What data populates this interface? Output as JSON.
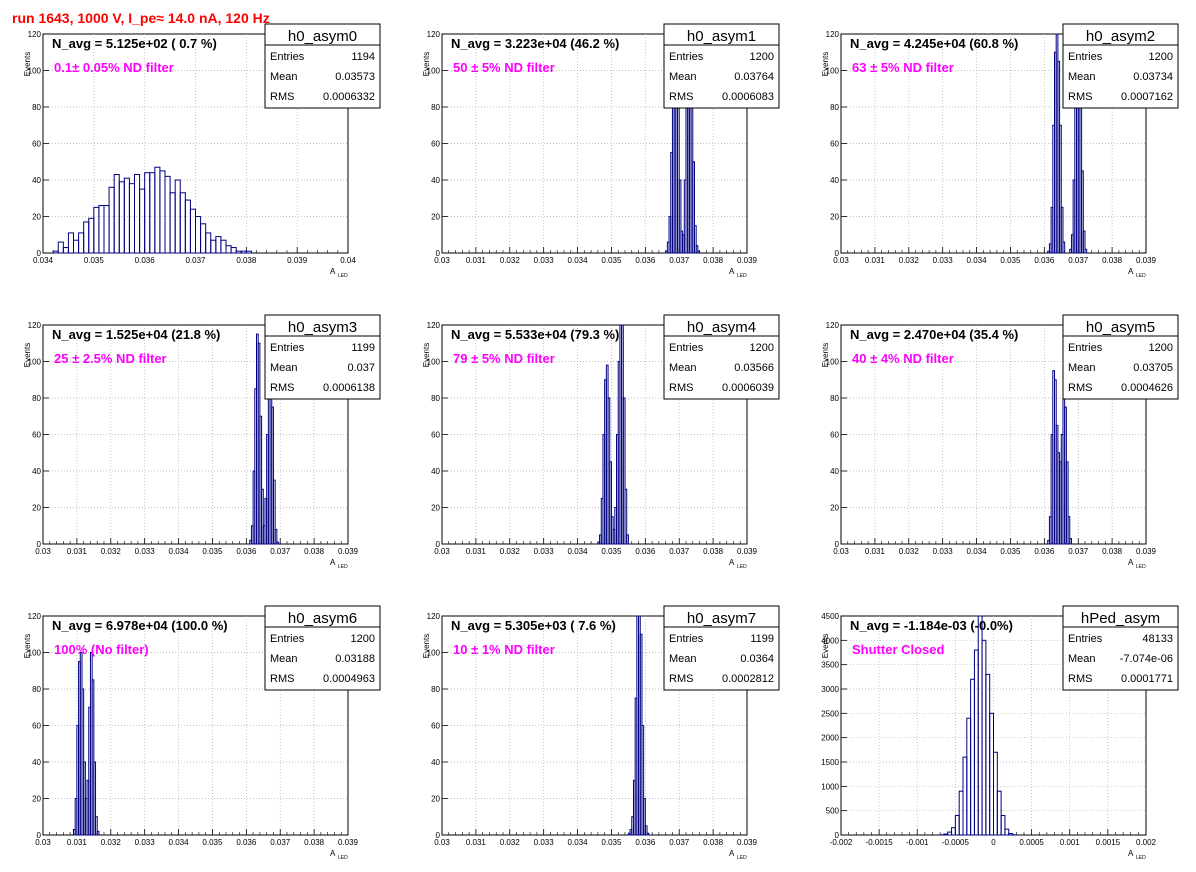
{
  "title": "run 1643,  1000 V, I_pe≈ 14.0 nA, 120 Hz",
  "colors": {
    "title": "#ff0000",
    "hist": "#000080",
    "filter_label": "#ff00ff",
    "grid": "#b0b0b0"
  },
  "chart_data": [
    {
      "type": "bar",
      "name": "h0_asym0",
      "navg": "N_avg = 5.125e+02 ( 0.7 %)",
      "label": "0.1± 0.05% ND filter",
      "stats": {
        "entries": "1194",
        "mean": "0.03573",
        "rms": "0.0006332"
      },
      "stat_labels": [
        "Entries",
        "Mean",
        "RMS"
      ],
      "xlabel": "A",
      "xlabel_sub": "LED",
      "ylabel": "Events",
      "xlim": [
        0.034,
        0.04
      ],
      "ylim": [
        0,
        120
      ],
      "xticks": [
        "0.034",
        "0.035",
        "0.036",
        "0.037",
        "0.038",
        "0.039",
        "0.04"
      ],
      "yticks": [
        "0",
        "20",
        "40",
        "60",
        "80",
        "100",
        "120"
      ],
      "bin_start": 0.034,
      "bin_width": 0.0001,
      "values": [
        0,
        0,
        1,
        6,
        3,
        11,
        7,
        11,
        17,
        19,
        25,
        26,
        26,
        36,
        43,
        39,
        41,
        38,
        43,
        35,
        44,
        44,
        47,
        45,
        42,
        33,
        40,
        33,
        29,
        24,
        20,
        16,
        11,
        7,
        9,
        7,
        4,
        3,
        1,
        1,
        1
      ]
    },
    {
      "type": "bar",
      "name": "h0_asym1",
      "navg": "N_avg = 3.223e+04 (46.2 %)",
      "label": "50 ± 5% ND filter",
      "stats": {
        "entries": "1200",
        "mean": "0.03764",
        "rms": "0.0006083"
      },
      "stat_labels": [
        "Entries",
        "Mean",
        "RMS"
      ],
      "xlabel": "A",
      "xlabel_sub": "LED",
      "ylabel": "Events",
      "xlim": [
        0.03,
        0.039
      ],
      "ylim": [
        0,
        120
      ],
      "xticks": [
        "0.03",
        "0.031",
        "0.032",
        "0.033",
        "0.034",
        "0.035",
        "0.036",
        "0.037",
        "0.038",
        "0.039"
      ],
      "yticks": [
        "0",
        "20",
        "40",
        "60",
        "80",
        "100",
        "120"
      ],
      "bin_start": 0.0366,
      "bin_width": 5e-05,
      "values": [
        1,
        6,
        20,
        55,
        100,
        125,
        125,
        85,
        40,
        12,
        10,
        40,
        90,
        125,
        125,
        95,
        50,
        15,
        4,
        1
      ]
    },
    {
      "type": "bar",
      "name": "h0_asym2",
      "navg": "N_avg = 4.245e+04 (60.8 %)",
      "label": "63 ± 5% ND filter",
      "stats": {
        "entries": "1200",
        "mean": "0.03734",
        "rms": "0.0007162"
      },
      "stat_labels": [
        "Entries",
        "Mean",
        "RMS"
      ],
      "xlabel": "A",
      "xlabel_sub": "LED",
      "ylabel": "Events",
      "xlim": [
        0.03,
        0.039
      ],
      "ylim": [
        0,
        120
      ],
      "xticks": [
        "0.03",
        "0.031",
        "0.032",
        "0.033",
        "0.034",
        "0.035",
        "0.036",
        "0.037",
        "0.038",
        "0.039"
      ],
      "yticks": [
        "0",
        "20",
        "40",
        "60",
        "80",
        "100",
        "120"
      ],
      "bin_start": 0.0361,
      "bin_width": 5e-05,
      "values": [
        1,
        5,
        25,
        70,
        110,
        125,
        105,
        70,
        25,
        6,
        0,
        0,
        0,
        2,
        10,
        40,
        85,
        125,
        125,
        90,
        45,
        12,
        2
      ]
    },
    {
      "type": "bar",
      "name": "h0_asym3",
      "navg": "N_avg = 1.525e+04 (21.8 %)",
      "label": "25 ± 2.5% ND filter",
      "stats": {
        "entries": "1199",
        "mean": "0.037",
        "rms": "0.0006138"
      },
      "stat_labels": [
        "Entries",
        "Mean",
        "RMS"
      ],
      "xlabel": "A",
      "xlabel_sub": "LED",
      "ylabel": "Events",
      "xlim": [
        0.03,
        0.039
      ],
      "ylim": [
        0,
        120
      ],
      "xticks": [
        "0.03",
        "0.031",
        "0.032",
        "0.033",
        "0.034",
        "0.035",
        "0.036",
        "0.037",
        "0.038",
        "0.039"
      ],
      "yticks": [
        "0",
        "20",
        "40",
        "60",
        "80",
        "100",
        "120"
      ],
      "bin_start": 0.0361,
      "bin_width": 5e-05,
      "values": [
        2,
        10,
        40,
        85,
        115,
        110,
        70,
        30,
        10,
        25,
        60,
        90,
        100,
        75,
        35,
        8,
        1
      ]
    },
    {
      "type": "bar",
      "name": "h0_asym4",
      "navg": "N_avg = 5.533e+04 (79.3 %)",
      "label": "79 ± 5% ND filter",
      "stats": {
        "entries": "1200",
        "mean": "0.03566",
        "rms": "0.0006039"
      },
      "stat_labels": [
        "Entries",
        "Mean",
        "RMS"
      ],
      "xlabel": "A",
      "xlabel_sub": "LED",
      "ylabel": "Events",
      "xlim": [
        0.03,
        0.039
      ],
      "ylim": [
        0,
        120
      ],
      "xticks": [
        "0.03",
        "0.031",
        "0.032",
        "0.033",
        "0.034",
        "0.035",
        "0.036",
        "0.037",
        "0.038",
        "0.039"
      ],
      "yticks": [
        "0",
        "20",
        "40",
        "60",
        "80",
        "100",
        "120"
      ],
      "bin_start": 0.0346,
      "bin_width": 5e-05,
      "values": [
        1,
        5,
        25,
        60,
        90,
        98,
        80,
        45,
        15,
        8,
        20,
        60,
        100,
        125,
        125,
        80,
        30,
        5
      ]
    },
    {
      "type": "bar",
      "name": "h0_asym5",
      "navg": "N_avg = 2.470e+04 (35.4 %)",
      "label": "40 ± 4% ND filter",
      "stats": {
        "entries": "1200",
        "mean": "0.03705",
        "rms": "0.0004626"
      },
      "stat_labels": [
        "Entries",
        "Mean",
        "RMS"
      ],
      "xlabel": "A",
      "xlabel_sub": "LED",
      "ylabel": "Events",
      "xlim": [
        0.03,
        0.039
      ],
      "ylim": [
        0,
        120
      ],
      "xticks": [
        "0.03",
        "0.031",
        "0.032",
        "0.033",
        "0.034",
        "0.035",
        "0.036",
        "0.037",
        "0.038",
        "0.039"
      ],
      "yticks": [
        "0",
        "20",
        "40",
        "60",
        "80",
        "100",
        "120"
      ],
      "bin_start": 0.0361,
      "bin_width": 5e-05,
      "values": [
        2,
        15,
        60,
        95,
        90,
        65,
        50,
        45,
        60,
        80,
        75,
        45,
        15,
        3
      ]
    },
    {
      "type": "bar",
      "name": "h0_asym6",
      "navg": "N_avg = 6.978e+04 (100.0 %)",
      "label": "100% (No filter)",
      "stats": {
        "entries": "1200",
        "mean": "0.03188",
        "rms": "0.0004963"
      },
      "stat_labels": [
        "Entries",
        "Mean",
        "RMS"
      ],
      "xlabel": "A",
      "xlabel_sub": "LED",
      "ylabel": "Events",
      "xlim": [
        0.03,
        0.039
      ],
      "ylim": [
        0,
        120
      ],
      "xticks": [
        "0.03",
        "0.031",
        "0.032",
        "0.033",
        "0.034",
        "0.035",
        "0.036",
        "0.037",
        "0.038",
        "0.039"
      ],
      "yticks": [
        "0",
        "20",
        "40",
        "60",
        "80",
        "100",
        "120"
      ],
      "bin_start": 0.0309,
      "bin_width": 5e-05,
      "values": [
        3,
        20,
        60,
        95,
        100,
        80,
        40,
        20,
        30,
        70,
        100,
        85,
        40,
        10,
        2
      ]
    },
    {
      "type": "bar",
      "name": "h0_asym7",
      "navg": "N_avg = 5.305e+03 ( 7.6 %)",
      "label": "10 ± 1% ND filter",
      "stats": {
        "entries": "1199",
        "mean": "0.0364",
        "rms": "0.0002812"
      },
      "stat_labels": [
        "Entries",
        "Mean",
        "RMS"
      ],
      "xlabel": "A",
      "xlabel_sub": "LED",
      "ylabel": "Events",
      "xlim": [
        0.03,
        0.039
      ],
      "ylim": [
        0,
        120
      ],
      "xticks": [
        "0.03",
        "0.031",
        "0.032",
        "0.033",
        "0.034",
        "0.035",
        "0.036",
        "0.037",
        "0.038",
        "0.039"
      ],
      "yticks": [
        "0",
        "20",
        "40",
        "60",
        "80",
        "100",
        "120"
      ],
      "bin_start": 0.0355,
      "bin_width": 5e-05,
      "values": [
        1,
        3,
        10,
        30,
        75,
        120,
        125,
        110,
        60,
        20,
        5,
        1
      ]
    },
    {
      "type": "bar",
      "name": "hPed_asym",
      "navg": "N_avg = -1.184e-03 (-0.0%)",
      "label": "Shutter Closed",
      "stats": {
        "entries": "48133",
        "mean": "-7.074e-06",
        "rms": "0.0001771"
      },
      "stat_labels": [
        "Entries",
        "Mean",
        "RMS"
      ],
      "xlabel": "A",
      "xlabel_sub": "LED",
      "ylabel": "Events",
      "xlim": [
        -0.002,
        0.002
      ],
      "ylim": [
        0,
        4500
      ],
      "xticks": [
        "-0.002",
        "-0.0015",
        "-0.001",
        "-0.0005",
        "0",
        "0.0005",
        "0.001",
        "0.0015",
        "0.002"
      ],
      "yticks": [
        "0",
        "500",
        "1000",
        "1500",
        "2000",
        "2500",
        "3000",
        "3500",
        "4000",
        "4500"
      ],
      "bin_start": -0.0007,
      "bin_width": 5e-05,
      "values": [
        5,
        20,
        60,
        150,
        400,
        900,
        1600,
        2400,
        3200,
        3800,
        4500,
        4000,
        3300,
        2500,
        1700,
        900,
        400,
        120,
        30,
        5
      ]
    }
  ]
}
